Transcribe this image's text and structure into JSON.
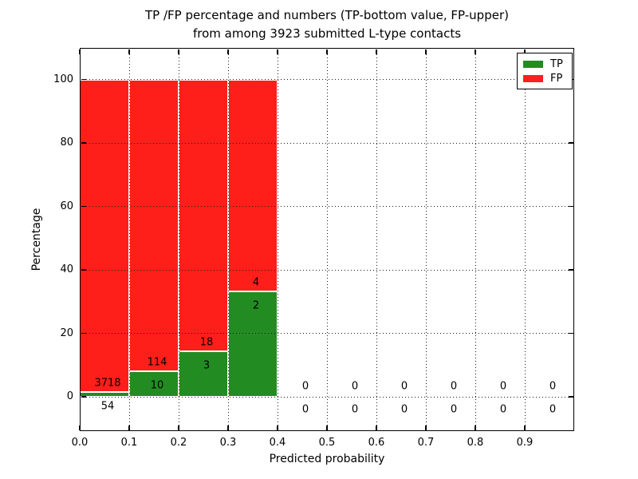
{
  "title": {
    "line1": "TP /FP percentage and numbers (TP-bottom value, FP-upper)",
    "line2": "from among 3923 submitted L-type contacts"
  },
  "axes": {
    "x_label": "Predicted probability",
    "y_label": "Percentage",
    "x_tick_labels": [
      "0.0",
      "0.1",
      "0.2",
      "0.3",
      "0.4",
      "0.5",
      "0.6",
      "0.7",
      "0.8",
      "0.9"
    ],
    "y_tick_labels": [
      "0",
      "20",
      "40",
      "60",
      "80",
      "100"
    ]
  },
  "legend": {
    "items": [
      {
        "label": "TP",
        "color": "#228c22"
      },
      {
        "label": "FP",
        "color": "#ff1f1a"
      }
    ]
  },
  "colors": {
    "tp": "#228c22",
    "fp": "#ff1f1a",
    "grid": "#1a1a1a",
    "axis": "#000000",
    "background": "#ffffff"
  },
  "chart_data": {
    "type": "bar",
    "stacked": true,
    "title": "TP /FP percentage and numbers (TP-bottom value, FP-upper) from among 3923 submitted L-type contacts",
    "xlabel": "Predicted probability",
    "ylabel": "Percentage",
    "total_contacts": 3923,
    "bin_ranges": [
      "0.0-0.1",
      "0.1-0.2",
      "0.2-0.3",
      "0.3-0.4",
      "0.4-0.5",
      "0.5-0.6",
      "0.6-0.7",
      "0.7-0.8",
      "0.8-0.9",
      "0.9-1.0"
    ],
    "series": [
      {
        "name": "TP",
        "counts": [
          54,
          10,
          3,
          2,
          0,
          0,
          0,
          0,
          0,
          0
        ],
        "percent": [
          1.43,
          8.06,
          14.29,
          33.33,
          0,
          0,
          0,
          0,
          0,
          0
        ]
      },
      {
        "name": "FP",
        "counts": [
          3718,
          114,
          18,
          4,
          0,
          0,
          0,
          0,
          0,
          0
        ],
        "percent": [
          98.57,
          91.94,
          85.71,
          66.67,
          0,
          0,
          0,
          0,
          0,
          0
        ]
      }
    ],
    "bar_total_percent_when_nonempty": 100,
    "xlim": [
      0.0,
      1.0
    ],
    "ylim": [
      -11,
      110
    ],
    "grid": true,
    "legend_position": "upper right"
  }
}
